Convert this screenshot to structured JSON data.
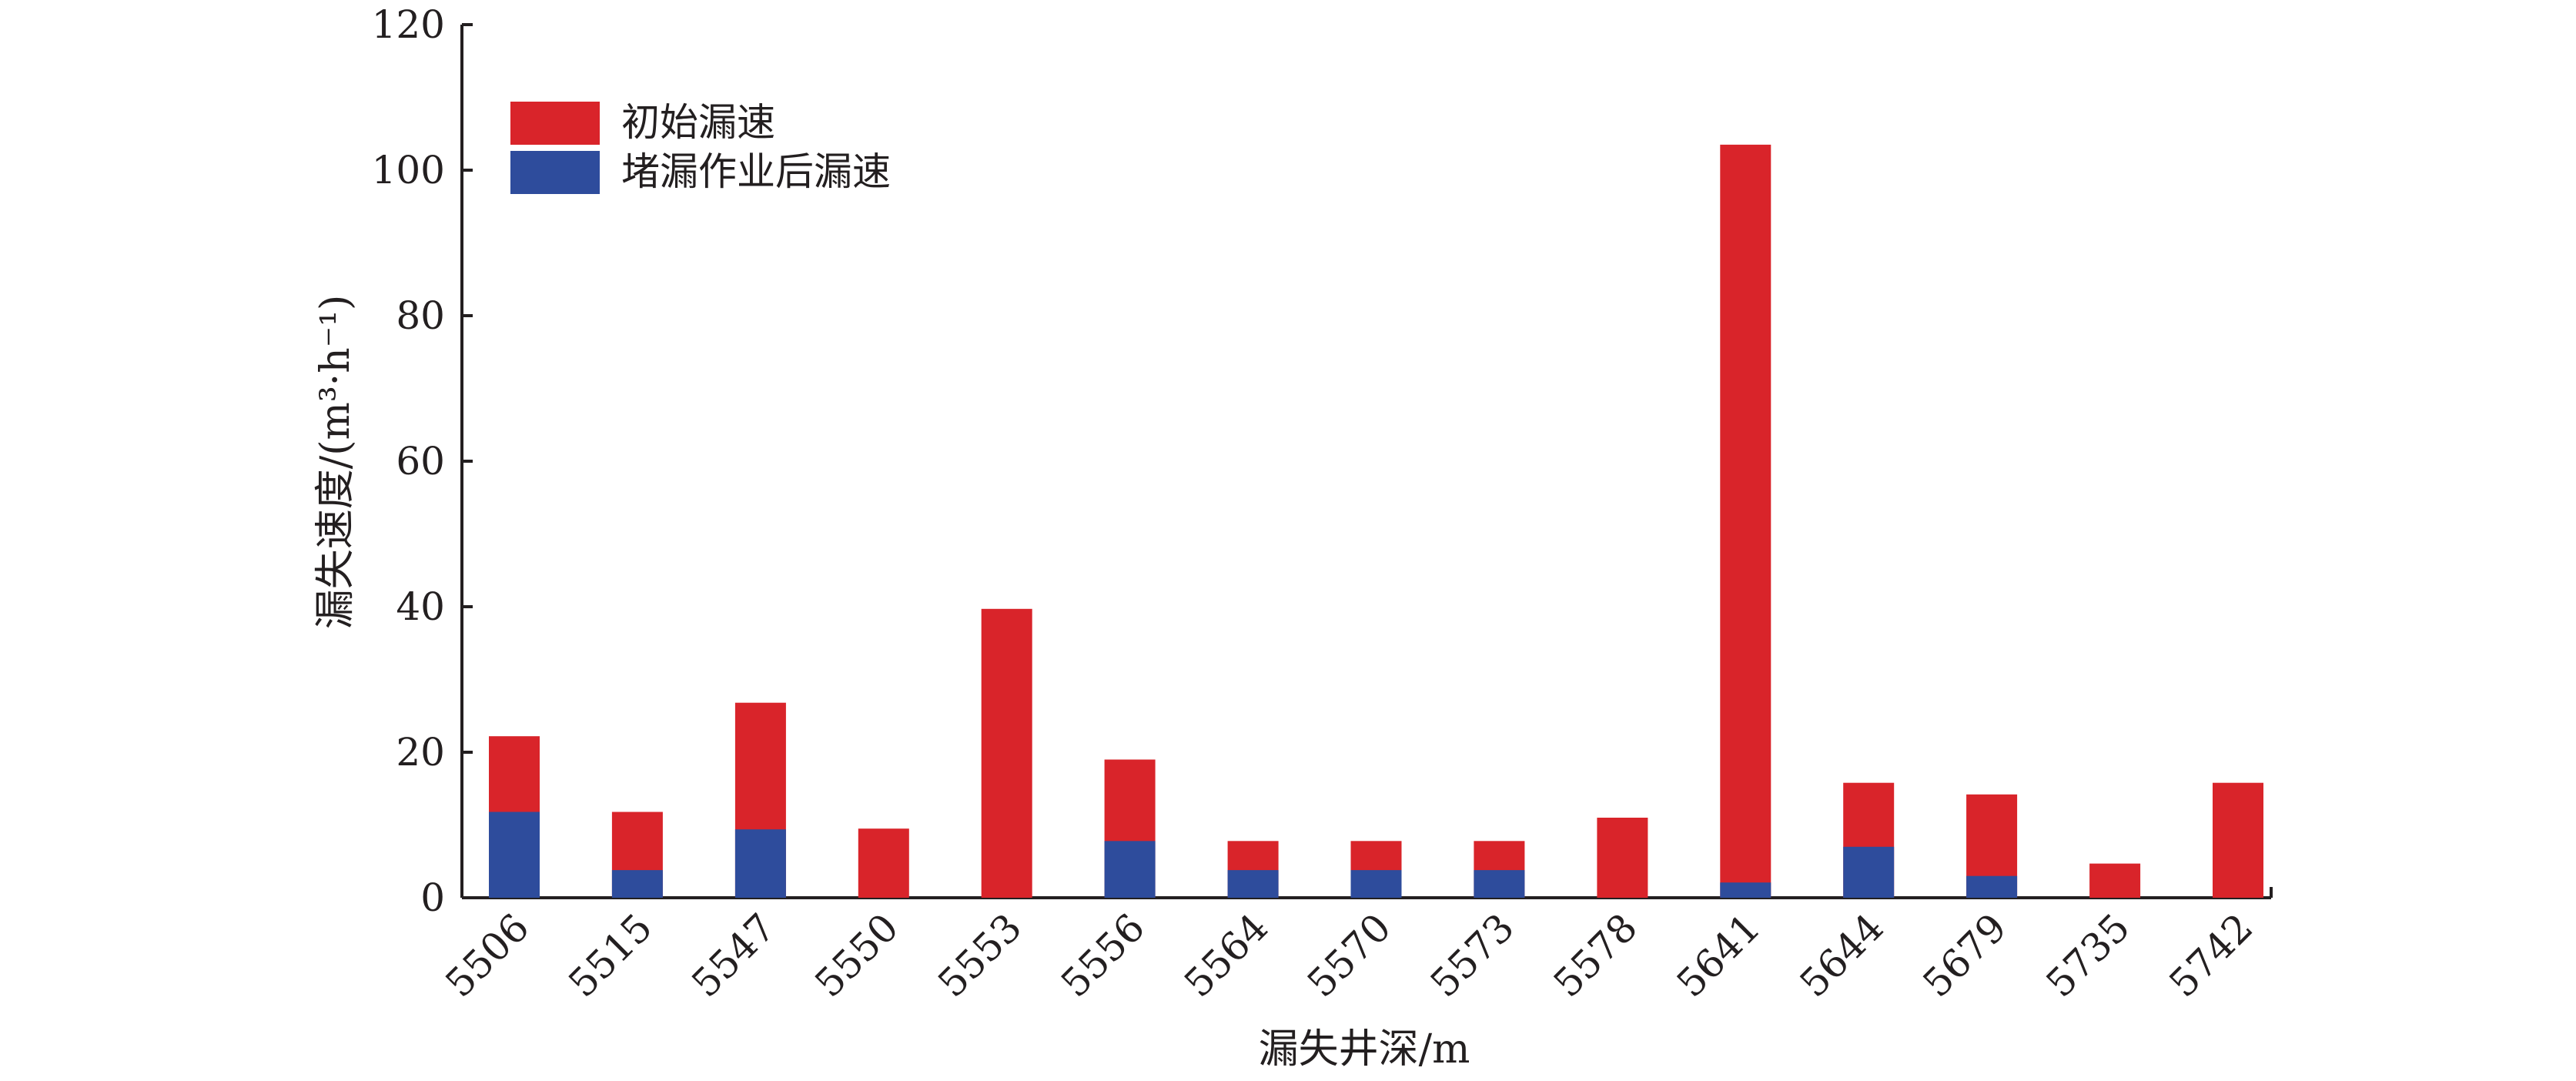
{
  "chart_data": {
    "type": "bar",
    "stacked": false,
    "overlapping": true,
    "title": "",
    "xlabel": "漏失井深/m",
    "ylabel": "漏失速度/(m³·h⁻¹)",
    "ylim": [
      0,
      120
    ],
    "yticks": [
      "0",
      "20",
      "40",
      "60",
      "80",
      "100",
      "120"
    ],
    "grid": false,
    "legend_position": "top-left",
    "categories": [
      "5506",
      "5515",
      "5547",
      "5550",
      "5553",
      "5556",
      "5564",
      "5570",
      "5573",
      "5578",
      "5641",
      "5644",
      "5679",
      "5735",
      "5742"
    ],
    "series": [
      {
        "name": "初始漏速",
        "color": "#d9242a",
        "values": [
          22.2,
          11.8,
          26.8,
          9.5,
          39.7,
          19.0,
          7.8,
          7.8,
          7.8,
          11.0,
          103.5,
          15.8,
          14.2,
          4.7,
          15.8
        ]
      },
      {
        "name": "堵漏作业后漏速",
        "color": "#2e4c9c",
        "values": [
          11.8,
          3.8,
          9.4,
          0,
          0,
          7.8,
          3.8,
          3.8,
          3.8,
          0,
          2.1,
          7.0,
          3.0,
          0,
          0
        ]
      }
    ]
  }
}
